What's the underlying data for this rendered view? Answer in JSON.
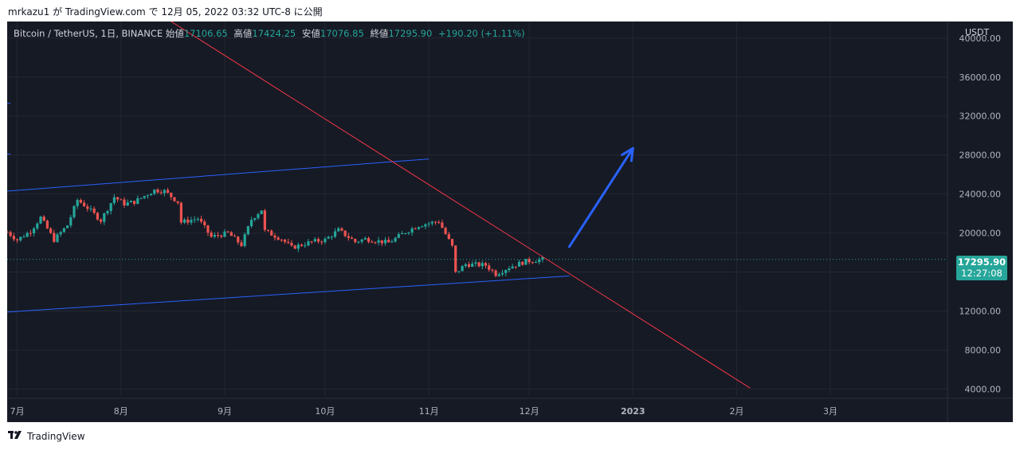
{
  "caption": "mrkazu1 が TradingView.com で 12月 05, 2022 03:32 UTC-8 に公開",
  "legend": {
    "symbol": "Bitcoin / TetherUS, 1日, BINANCE",
    "open_label": "始値",
    "open": "17106.65",
    "high_label": "高値",
    "high": "17424.25",
    "low_label": "安値",
    "low": "17076.85",
    "close_label": "終値",
    "close": "17295.90",
    "change": "+190.20 (+1.11%)"
  },
  "currency": "USDT",
  "price_badge": {
    "price": "17295.90",
    "countdown": "12:27:08"
  },
  "brand": {
    "name": "TradingView",
    "logo": "tradingview-logo-icon"
  },
  "colors": {
    "background": "#161a25",
    "up": "#26a69a",
    "down": "#ef5350",
    "channel": "#2962ff",
    "trendline": "#f23645",
    "arrow": "#2962ff"
  },
  "chart_data": {
    "type": "candlestick",
    "series_name": "Bitcoin / TetherUS",
    "y_ticks": [
      "40000.00",
      "36000.00",
      "32000.00",
      "28000.00",
      "24000.00",
      "20000.00",
      "16000.00",
      "12000.00",
      "8000.00",
      "4000.00"
    ],
    "y_tick_values": [
      40000,
      36000,
      32000,
      28000,
      24000,
      20000,
      16000,
      12000,
      8000,
      4000
    ],
    "x_ticks": [
      "7月",
      "8月",
      "9月",
      "10月",
      "11月",
      "12月",
      "2023",
      "2月",
      "3月"
    ],
    "x_tick_dates": [
      "2022-07-01",
      "2022-08-01",
      "2022-09-01",
      "2022-10-01",
      "2022-11-01",
      "2022-12-01",
      "2023-01-01",
      "2023-02-01",
      "2023-03-01"
    ],
    "ylim": [
      3300,
      41700
    ],
    "xlim": [
      "2022-06-28",
      "2023-04-05"
    ],
    "last_price": 17295.9,
    "closes": [
      {
        "date": "2022-06-28",
        "close": 20100
      },
      {
        "date": "2022-07-01",
        "close": 19300
      },
      {
        "date": "2022-07-05",
        "close": 20200
      },
      {
        "date": "2022-07-08",
        "close": 21600
      },
      {
        "date": "2022-07-12",
        "close": 19300
      },
      {
        "date": "2022-07-16",
        "close": 20800
      },
      {
        "date": "2022-07-19",
        "close": 23400
      },
      {
        "date": "2022-07-22",
        "close": 22600
      },
      {
        "date": "2022-07-26",
        "close": 21300
      },
      {
        "date": "2022-07-30",
        "close": 23700
      },
      {
        "date": "2022-08-02",
        "close": 23000
      },
      {
        "date": "2022-08-05",
        "close": 23200
      },
      {
        "date": "2022-08-08",
        "close": 23800
      },
      {
        "date": "2022-08-11",
        "close": 24400
      },
      {
        "date": "2022-08-14",
        "close": 24300
      },
      {
        "date": "2022-08-18",
        "close": 23200
      },
      {
        "date": "2022-08-19",
        "close": 21100
      },
      {
        "date": "2022-08-24",
        "close": 21500
      },
      {
        "date": "2022-08-28",
        "close": 19600
      },
      {
        "date": "2022-09-02",
        "close": 20000
      },
      {
        "date": "2022-09-06",
        "close": 18800
      },
      {
        "date": "2022-09-09",
        "close": 21400
      },
      {
        "date": "2022-09-12",
        "close": 22400
      },
      {
        "date": "2022-09-13",
        "close": 20200
      },
      {
        "date": "2022-09-18",
        "close": 19400
      },
      {
        "date": "2022-09-21",
        "close": 18500
      },
      {
        "date": "2022-09-27",
        "close": 19100
      },
      {
        "date": "2022-10-01",
        "close": 19300
      },
      {
        "date": "2022-10-05",
        "close": 20300
      },
      {
        "date": "2022-10-10",
        "close": 19100
      },
      {
        "date": "2022-10-13",
        "close": 19400
      },
      {
        "date": "2022-10-20",
        "close": 19000
      },
      {
        "date": "2022-10-25",
        "close": 20100
      },
      {
        "date": "2022-10-29",
        "close": 20800
      },
      {
        "date": "2022-11-04",
        "close": 21200
      },
      {
        "date": "2022-11-08",
        "close": 18600
      },
      {
        "date": "2022-11-09",
        "close": 15900
      },
      {
        "date": "2022-11-12",
        "close": 16800
      },
      {
        "date": "2022-11-18",
        "close": 16700
      },
      {
        "date": "2022-11-21",
        "close": 15800
      },
      {
        "date": "2022-11-25",
        "close": 16500
      },
      {
        "date": "2022-11-30",
        "close": 17100
      },
      {
        "date": "2022-12-05",
        "close": 17295.9
      }
    ],
    "drawings": [
      {
        "name": "upper-channel-line",
        "from": {
          "date": "2022-06-28",
          "price": 24300
        },
        "to": {
          "date": "2022-11-01",
          "price": 27600
        }
      },
      {
        "name": "upper-channel-line-2",
        "from": {
          "date": "2022-06-28",
          "price": 28100
        },
        "to": {
          "date": "2022-06-29",
          "price": 28100
        }
      },
      {
        "name": "upper-channel-line-3",
        "from": {
          "date": "2022-06-28",
          "price": 33300
        },
        "to": {
          "date": "2022-06-29",
          "price": 33300
        }
      },
      {
        "name": "lower-channel-line",
        "from": {
          "date": "2022-06-28",
          "price": 11900
        },
        "to": {
          "date": "2022-12-13",
          "price": 15600
        }
      },
      {
        "name": "red-trendline",
        "from": {
          "date": "2022-08-16",
          "price": 41700
        },
        "to": {
          "date": "2023-02-05",
          "price": 4100
        }
      },
      {
        "name": "target-arrow",
        "from": {
          "date": "2022-12-13",
          "price": 18600
        },
        "to": {
          "date": "2023-01-01",
          "price": 28700
        }
      }
    ]
  }
}
